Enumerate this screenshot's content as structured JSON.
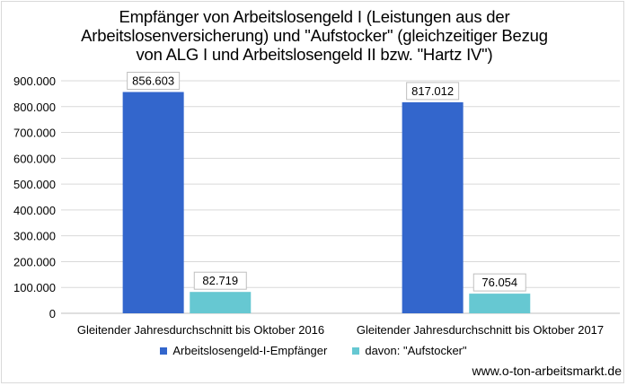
{
  "title_lines": [
    "Empfänger von Arbeitslosengeld I (Leistungen aus der",
    "Arbeitslosenversicherung) und \"Aufstocker\" (gleichzeitiger Bezug",
    "von ALG I und Arbeitslosengeld II bzw. \"Hartz IV\")"
  ],
  "source": "www.o-ton-arbeitsmarkt.de",
  "colors": {
    "series1": "#3366cc",
    "series2": "#66c8d2",
    "grid": "#d9d9d9",
    "axis": "#bfbfbf"
  },
  "chart_data": {
    "type": "bar",
    "title": "Empfänger von Arbeitslosengeld I (Leistungen aus der Arbeitslosenversicherung) und \"Aufstocker\" (gleichzeitiger Bezug von ALG I und Arbeitslosengeld II bzw. \"Hartz IV\")",
    "categories": [
      "Gleitender Jahresdurchschnitt bis Oktober 2016",
      "Gleitender Jahresdurchschnitt bis Oktober 2017"
    ],
    "series": [
      {
        "name": "Arbeitslosengeld-I-Empfänger",
        "values": [
          856603,
          817012
        ],
        "labels": [
          "856.603",
          "817.012"
        ]
      },
      {
        "name": "davon: \"Aufstocker\"",
        "values": [
          82719,
          76054
        ],
        "labels": [
          "82.719",
          "76.054"
        ]
      }
    ],
    "ylim": [
      0,
      900000
    ],
    "yticks": [
      0,
      100000,
      200000,
      300000,
      400000,
      500000,
      600000,
      700000,
      800000,
      900000
    ],
    "ytick_labels": [
      "0",
      "100.000",
      "200.000",
      "300.000",
      "400.000",
      "500.000",
      "600.000",
      "700.000",
      "800.000",
      "900.000"
    ],
    "grid": true,
    "legend_position": "bottom",
    "data_labels": true
  }
}
